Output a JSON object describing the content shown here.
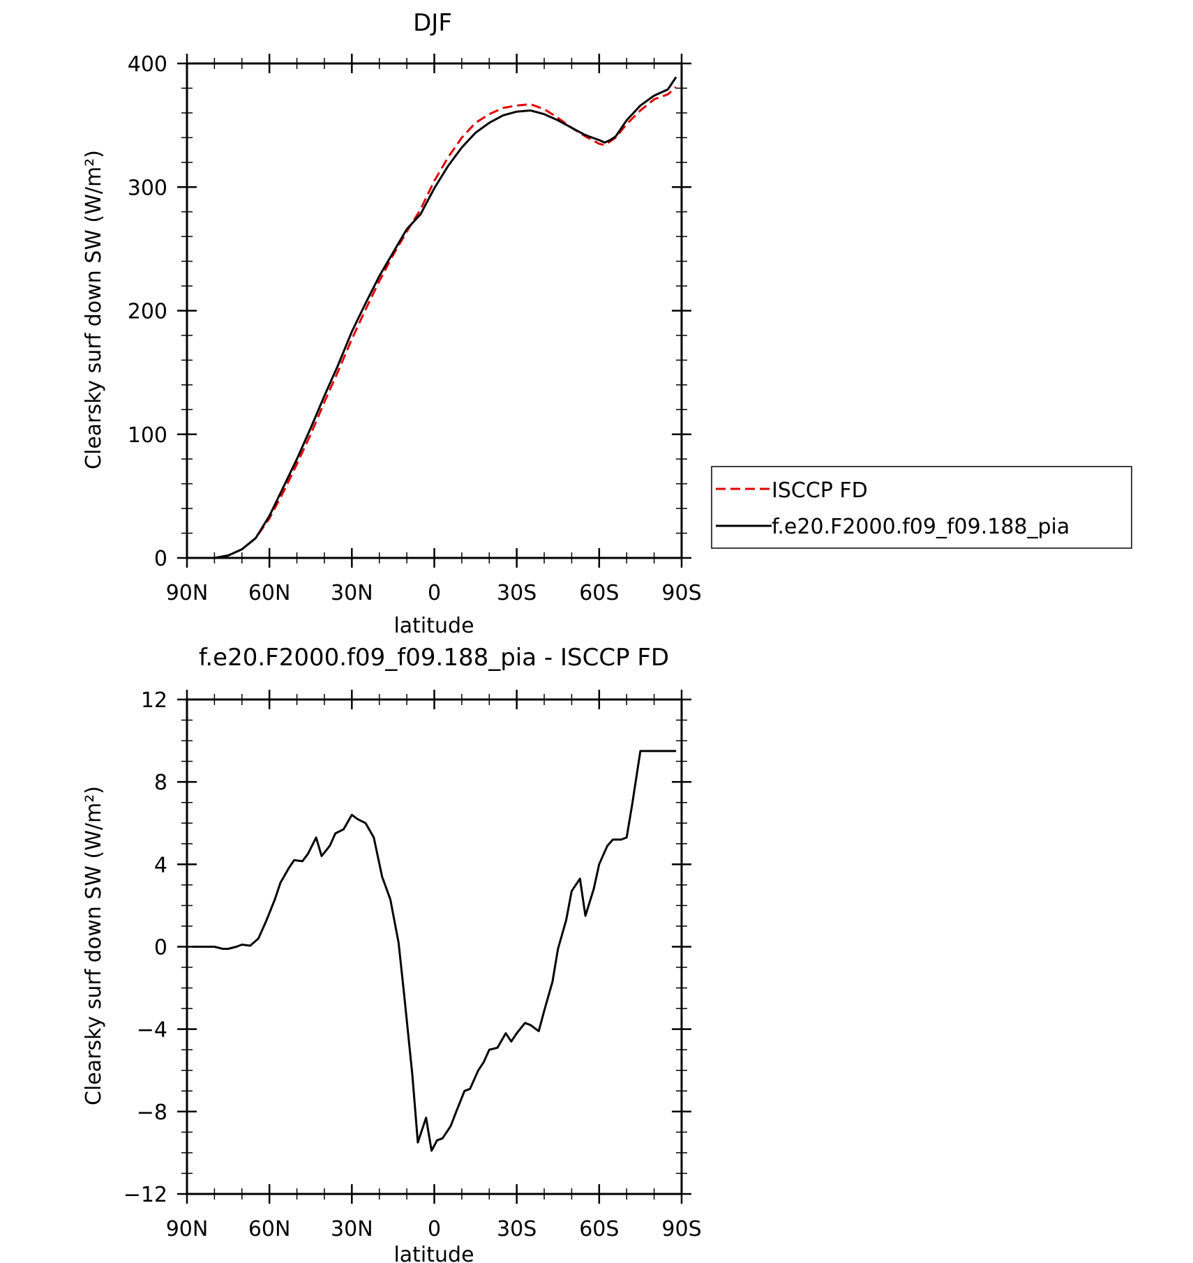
{
  "chart_data": [
    {
      "type": "line",
      "title": "DJF",
      "xlabel": "latitude",
      "ylabel": "Clearsky surf down SW (W/m²)",
      "xlim": [
        -90,
        90
      ],
      "ylim": [
        0,
        400
      ],
      "x_axis_reversed": true,
      "xticks": [
        90,
        60,
        30,
        0,
        -30,
        -60,
        -90
      ],
      "xtick_labels": [
        "90N",
        "60N",
        "30N",
        "0",
        "30S",
        "60S",
        "90S"
      ],
      "yticks": [
        0,
        100,
        200,
        300,
        400
      ],
      "ytick_labels": [
        "0",
        "100",
        "200",
        "300",
        "400"
      ],
      "legend": {
        "placement": "right",
        "entries": [
          "ISCCP FD",
          "f.e20.F2000.f09_f09.188_pia"
        ]
      },
      "series": [
        {
          "name": "ISCCP FD",
          "color": "#e00000",
          "style": "dashed",
          "x": [
            88,
            85,
            80,
            75,
            70,
            65,
            60,
            55,
            50,
            45,
            40,
            35,
            30,
            25,
            20,
            15,
            10,
            5,
            0,
            -5,
            -10,
            -15,
            -20,
            -25,
            -30,
            -35,
            -40,
            -45,
            -50,
            -55,
            -60,
            -62,
            -64,
            -66,
            -70,
            -75,
            -80,
            -85,
            -88
          ],
          "y": [
            0,
            0,
            0,
            2,
            7,
            16,
            32,
            53,
            76,
            100,
            126,
            151,
            177,
            201,
            224,
            245,
            264,
            282,
            305,
            324,
            340,
            352,
            359,
            364,
            366,
            367,
            363,
            356,
            348,
            341,
            335,
            334,
            337,
            340,
            351,
            362,
            371,
            375,
            381
          ]
        },
        {
          "name": "f.e20.F2000.f09_f09.188_pia",
          "color": "#000000",
          "style": "solid",
          "x": [
            88,
            85,
            80,
            75,
            70,
            65,
            60,
            55,
            50,
            45,
            40,
            35,
            30,
            25,
            20,
            15,
            10,
            5,
            0,
            -5,
            -10,
            -15,
            -20,
            -25,
            -30,
            -35,
            -40,
            -45,
            -50,
            -55,
            -60,
            -62,
            -64,
            -66,
            -70,
            -75,
            -80,
            -85,
            -88
          ],
          "y": [
            0,
            0,
            0,
            2,
            7,
            16,
            34,
            57,
            80,
            105,
            131,
            156,
            183,
            206,
            228,
            247,
            266,
            278,
            299,
            317,
            332,
            344,
            352,
            358,
            361,
            362,
            359,
            354,
            348,
            342,
            338,
            336,
            338,
            341,
            354,
            366,
            374,
            379,
            389
          ]
        }
      ]
    },
    {
      "type": "line",
      "title": "f.e20.F2000.f09_f09.188_pia - ISCCP FD",
      "xlabel": "latitude",
      "ylabel": "Clearsky surf down SW (W/m²)",
      "xlim": [
        -90,
        90
      ],
      "ylim": [
        -12,
        12
      ],
      "x_axis_reversed": true,
      "xticks": [
        90,
        60,
        30,
        0,
        -30,
        -60,
        -90
      ],
      "xtick_labels": [
        "90N",
        "60N",
        "30N",
        "0",
        "30S",
        "60S",
        "90S"
      ],
      "yticks": [
        -12,
        -8,
        -4,
        0,
        4,
        8,
        12
      ],
      "ytick_labels": [
        "−12",
        "−8",
        "−4",
        "0",
        "4",
        "8",
        "12"
      ],
      "series": [
        {
          "color": "#000000",
          "style": "solid",
          "x": [
            88,
            85,
            83,
            80,
            77,
            75,
            72,
            70,
            67,
            64,
            61,
            58,
            56,
            53,
            51,
            48,
            46,
            43,
            41,
            38,
            36,
            33,
            30,
            28,
            25,
            22,
            19,
            16,
            13,
            11,
            8,
            6,
            3,
            1,
            -1,
            -3,
            -6,
            -8,
            -11,
            -13,
            -16,
            -18,
            -20,
            -23,
            -26,
            -28,
            -30,
            -33,
            -35,
            -38,
            -40,
            -43,
            -45,
            -48,
            -50,
            -53,
            -55,
            -58,
            -60,
            -63,
            -65,
            -68,
            -70,
            -72,
            -75,
            -77,
            -80,
            -83,
            -85,
            -88
          ],
          "y": [
            0,
            0,
            0,
            0,
            -0.1,
            -0.1,
            0,
            0.1,
            0.05,
            0.4,
            1.3,
            2.3,
            3.1,
            3.8,
            4.2,
            4.15,
            4.5,
            5.3,
            4.4,
            4.9,
            5.5,
            5.7,
            6.4,
            6.2,
            6.0,
            5.3,
            3.4,
            2.3,
            0.2,
            -2.3,
            -6.2,
            -9.5,
            -8.3,
            -9.9,
            -9.4,
            -9.3,
            -8.7,
            -8.0,
            -7.0,
            -6.9,
            -6.0,
            -5.6,
            -5.0,
            -4.9,
            -4.2,
            -4.6,
            -4.2,
            -3.7,
            -3.8,
            -4.1,
            -3.1,
            -1.7,
            -0.1,
            1.3,
            2.7,
            3.3,
            1.5,
            2.8,
            4.0,
            4.9,
            5.2,
            5.2,
            5.3,
            6.9,
            9.5,
            9.5,
            9.5,
            9.5,
            9.5,
            9.5
          ]
        }
      ]
    }
  ]
}
